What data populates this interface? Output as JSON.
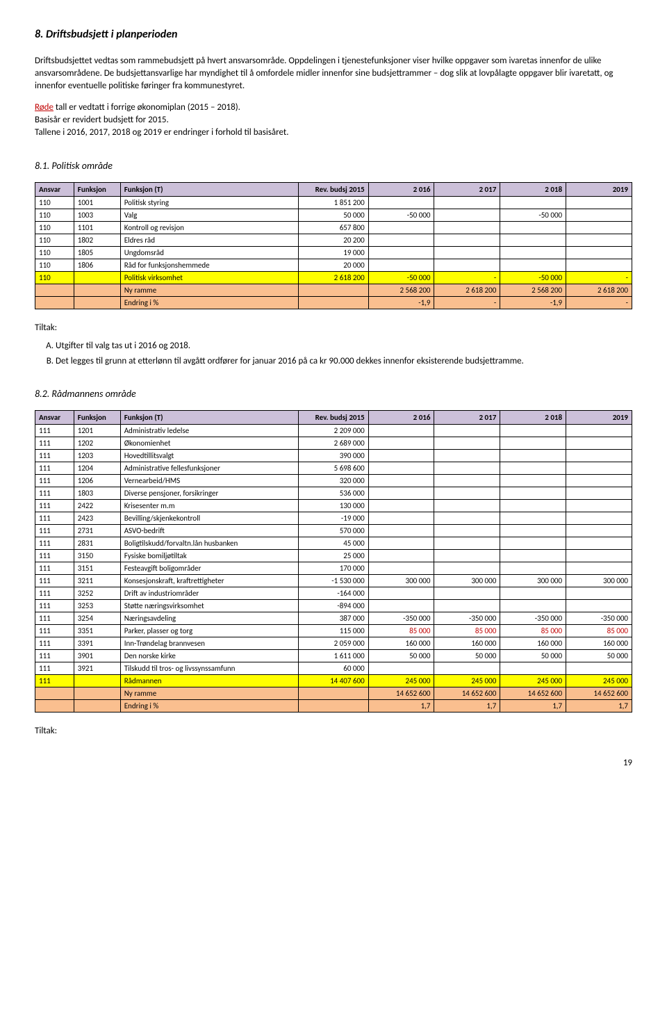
{
  "section8": {
    "title": "8.   Driftsbudsjett i planperioden",
    "p1": "Driftsbudsjettet vedtas som rammebudsjett på hvert ansvarsområde. Oppdelingen i tjenestefunksjoner viser hvilke oppgaver som ivaretas innenfor de ulike ansvarsområdene. De budsjettansvarlige har myndighet til å omfordele midler innenfor sine budsjettrammer – dog slik at lovpålagte oppgaver blir ivaretatt, og innenfor eventuelle politiske føringer fra kommunestyret.",
    "p2_red": "Røde",
    "p2_rest": " tall er vedtatt i forrige økonomiplan (2015 – 2018).",
    "p3": "Basisår er revidert budsjett for 2015.",
    "p4": "Tallene i 2016, 2017, 2018 og 2019 er endringer i forhold til basisåret."
  },
  "section81": {
    "title": "8.1.      Politisk område"
  },
  "table_headers": {
    "ansvar": "Ansvar",
    "funksjon": "Funksjon",
    "funksjon_t": "Funksjon (T)",
    "rev": "Rev. budsj 2015",
    "y2016": "2 016",
    "y2017": "2 017",
    "y2018": "2 018",
    "y2019": "2019"
  },
  "t1": {
    "rows": [
      {
        "a": "110",
        "f": "1001",
        "t": "Politisk styring",
        "r": "1 851 200",
        "c1": "",
        "c2": "",
        "c3": "",
        "c4": ""
      },
      {
        "a": "110",
        "f": "1003",
        "t": "Valg",
        "r": "50 000",
        "c1": "-50 000",
        "c2": "",
        "c3": "-50 000",
        "c4": ""
      },
      {
        "a": "110",
        "f": "1101",
        "t": "Kontroll og revisjon",
        "r": "657 800",
        "c1": "",
        "c2": "",
        "c3": "",
        "c4": ""
      },
      {
        "a": "110",
        "f": "1802",
        "t": "Eldres råd",
        "r": "20 200",
        "c1": "",
        "c2": "",
        "c3": "",
        "c4": ""
      },
      {
        "a": "110",
        "f": "1805",
        "t": "Ungdomsråd",
        "r": "19 000",
        "c1": "",
        "c2": "",
        "c3": "",
        "c4": ""
      },
      {
        "a": "110",
        "f": "1806",
        "t": "Råd for funksjonshemmede",
        "r": "20 000",
        "c1": "",
        "c2": "",
        "c3": "",
        "c4": ""
      }
    ],
    "sum": {
      "a": "110",
      "t": "Politisk virksomhet",
      "r": "2 618 200",
      "c1": "-50 000",
      "c2": "-",
      "c3": "-50 000",
      "c4": "-"
    },
    "ny": {
      "t": "Ny ramme",
      "c1": "2 568 200",
      "c2": "2 618 200",
      "c3": "2 568 200",
      "c4": "2 618 200"
    },
    "pct": {
      "t": "Endring i %",
      "c1": "-1,9",
      "c2": "-",
      "c3": "-1,9",
      "c4": "-"
    }
  },
  "tiltak_label": "Tiltak:",
  "t1_measures": {
    "a": "Utgifter til valg tas ut i 2016 og 2018.",
    "b": "Det legges til grunn at etterlønn til avgått ordfører for januar 2016 på ca kr 90.000 dekkes innenfor eksisterende budsjettramme."
  },
  "section82": {
    "title": "8.2.       Rådmannens område"
  },
  "t2": {
    "rows": [
      {
        "a": "111",
        "f": "1201",
        "t": "Administrativ ledelse",
        "r": "2 209 000",
        "c1": "",
        "c2": "",
        "c3": "",
        "c4": ""
      },
      {
        "a": "111",
        "f": "1202",
        "t": "Økonomienhet",
        "r": "2 689 000",
        "c1": "",
        "c2": "",
        "c3": "",
        "c4": ""
      },
      {
        "a": "111",
        "f": "1203",
        "t": "Hovedtillitsvalgt",
        "r": "390 000",
        "c1": "",
        "c2": "",
        "c3": "",
        "c4": ""
      },
      {
        "a": "111",
        "f": "1204",
        "t": "Administrative fellesfunksjoner",
        "r": "5 698 600",
        "c1": "",
        "c2": "",
        "c3": "",
        "c4": ""
      },
      {
        "a": "111",
        "f": "1206",
        "t": "Vernearbeid/HMS",
        "r": "320 000",
        "c1": "",
        "c2": "",
        "c3": "",
        "c4": ""
      },
      {
        "a": "111",
        "f": "1803",
        "t": "Diverse pensjoner, forsikringer",
        "r": "536 000",
        "c1": "",
        "c2": "",
        "c3": "",
        "c4": ""
      },
      {
        "a": "111",
        "f": "2422",
        "t": "Krisesenter m.m",
        "r": "130 000",
        "c1": "",
        "c2": "",
        "c3": "",
        "c4": ""
      },
      {
        "a": "111",
        "f": "2423",
        "t": "Bevilling/skjenkekontroll",
        "r": "-19 000",
        "c1": "",
        "c2": "",
        "c3": "",
        "c4": ""
      },
      {
        "a": "111",
        "f": "2731",
        "t": "ASVO-bedrift",
        "r": "570 000",
        "c1": "",
        "c2": "",
        "c3": "",
        "c4": ""
      },
      {
        "a": "111",
        "f": "2831",
        "t": "Boligtilskudd/forvaltn.lån husbanken",
        "r": "45 000",
        "c1": "",
        "c2": "",
        "c3": "",
        "c4": ""
      },
      {
        "a": "111",
        "f": "3150",
        "t": "Fysiske bomiljøtiltak",
        "r": "25 000",
        "c1": "",
        "c2": "",
        "c3": "",
        "c4": ""
      },
      {
        "a": "111",
        "f": "3151",
        "t": "Festeavgift boligområder",
        "r": "170 000",
        "c1": "",
        "c2": "",
        "c3": "",
        "c4": ""
      },
      {
        "a": "111",
        "f": "3211",
        "t": "Konsesjonskraft, kraftrettigheter",
        "r": "-1 530 000",
        "c1": "300 000",
        "c2": "300 000",
        "c3": "300 000",
        "c4": "300 000"
      },
      {
        "a": "111",
        "f": "3252",
        "t": "Drift av industriområder",
        "r": "-164 000",
        "c1": "",
        "c2": "",
        "c3": "",
        "c4": ""
      },
      {
        "a": "111",
        "f": "3253",
        "t": "Støtte næringsvirksomhet",
        "r": "-894 000",
        "c1": "",
        "c2": "",
        "c3": "",
        "c4": ""
      },
      {
        "a": "111",
        "f": "3254",
        "t": "Næringsavdeling",
        "r": "387 000",
        "c1": "-350 000",
        "c2": "-350 000",
        "c3": "-350 000",
        "c4": "-350 000"
      },
      {
        "a": "111",
        "f": "3351",
        "t": "Parker, plasser og torg",
        "r": "115 000",
        "c1": "85 000",
        "c2": "85 000",
        "c3": "85 000",
        "c4": "85 000",
        "red": true
      },
      {
        "a": "111",
        "f": "3391",
        "t": "Inn-Trøndelag brannvesen",
        "r": "2 059 000",
        "c1": "160 000",
        "c2": "160 000",
        "c3": "160 000",
        "c4": "160 000"
      },
      {
        "a": "111",
        "f": "3901",
        "t": "Den norske kirke",
        "r": "1 611 000",
        "c1": "50 000",
        "c2": "50 000",
        "c3": "50 000",
        "c4": "50 000"
      },
      {
        "a": "111",
        "f": "3921",
        "t": "Tilskudd til tros- og livssynssamfunn",
        "r": "60 000",
        "c1": "",
        "c2": "",
        "c3": "",
        "c4": ""
      }
    ],
    "sum": {
      "a": "111",
      "t": "Rådmannen",
      "r": "14 407 600",
      "c1": "245 000",
      "c2": "245 000",
      "c3": "245 000",
      "c4": "245 000"
    },
    "ny": {
      "t": "Ny ramme",
      "c1": "14 652 600",
      "c2": "14 652 600",
      "c3": "14 652 600",
      "c4": "14 652 600"
    },
    "pct": {
      "t": "Endring i %",
      "c1": "1,7",
      "c2": "1,7",
      "c3": "1,7",
      "c4": "1,7"
    }
  },
  "pagenum": "19"
}
